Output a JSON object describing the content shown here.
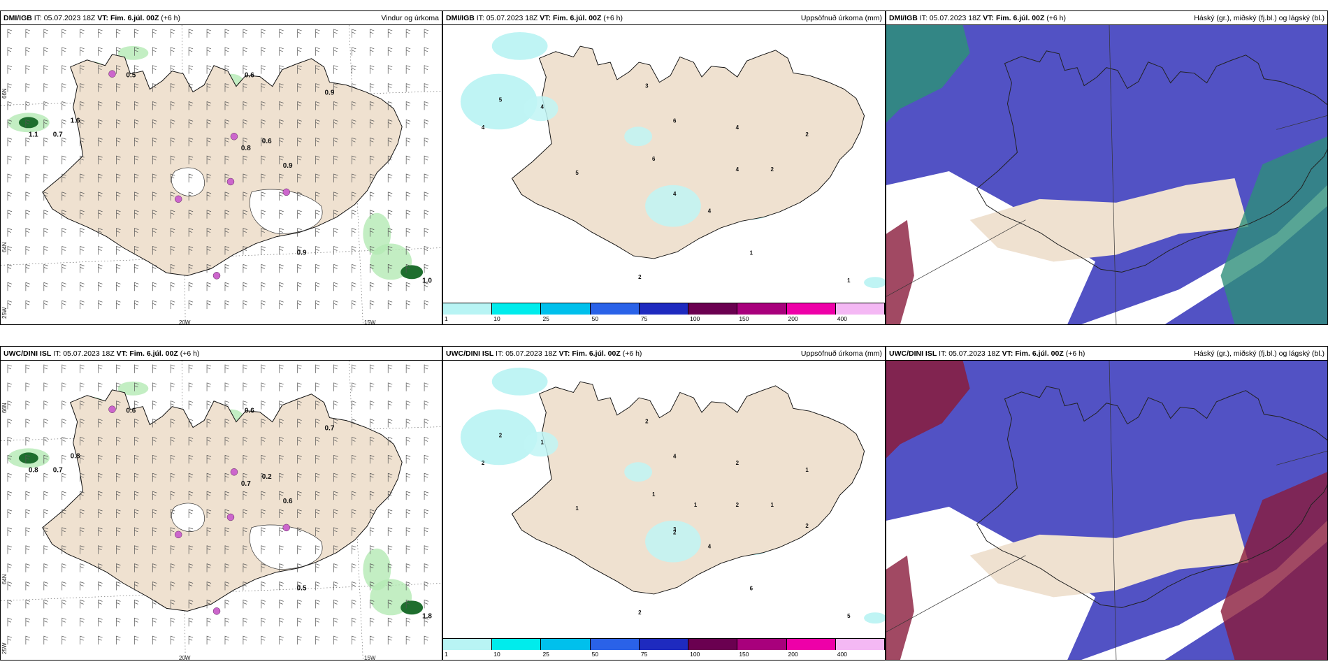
{
  "rows": [
    {
      "model": "DMI/IGB",
      "panels": [
        {
          "title": "Vindur og úrkoma",
          "kind": "wind"
        },
        {
          "title": "Uppsöfnuð úrkoma (mm)",
          "kind": "accum"
        },
        {
          "title": "Háský (gr.), miðský (fj.bl.) og lágský (bl.)",
          "kind": "cloud"
        }
      ],
      "wind_labels": [
        "0.5",
        "0.6",
        "0.9",
        "1.1",
        "0.7",
        "1.6",
        "0.8",
        "0.6",
        "0.9",
        "0.9",
        "1.0"
      ],
      "accum_labels": [
        "4",
        "5",
        "4",
        "3",
        "6",
        "4",
        "2",
        "6",
        "4",
        "2",
        "5",
        "4",
        "4",
        "1",
        "1",
        "2"
      ]
    },
    {
      "model": "UWC/DINI ISL",
      "panels": [
        {
          "title": "Vindur og úrkoma",
          "kind": "wind"
        },
        {
          "title": "Uppsöfnuð úrkoma (mm)",
          "kind": "accum"
        },
        {
          "title": "Háský (gr.), miðský (fj.bl.) og lágský (bl.)",
          "kind": "cloud"
        }
      ],
      "wind_labels": [
        "0.6",
        "0.6",
        "0.7",
        "0.8",
        "0.7",
        "0.8",
        "0.7",
        "0.2",
        "0.6",
        "0.5",
        "1.8"
      ],
      "accum_labels": [
        "2",
        "2",
        "1",
        "2",
        "4",
        "2",
        "1",
        "1",
        "2",
        "1",
        "1",
        "3",
        "4",
        "5",
        "6",
        "2",
        "2",
        "1",
        "2"
      ]
    }
  ],
  "header": {
    "it_label": "IT:",
    "it_value": "05.07.2023 18Z",
    "vt_label": "VT:",
    "vt_value": "Fim. 6.júl. 00Z",
    "lead": "(+6 h)"
  },
  "axis": {
    "lon_labels": [
      "20W",
      "15W"
    ],
    "lat_labels": [
      "66N",
      "64N"
    ],
    "corner_lat": "25W"
  },
  "colorbar": {
    "ticks": [
      "1",
      "10",
      "25",
      "50",
      "75",
      "100",
      "150",
      "200",
      "400"
    ],
    "colors": [
      "#b8f4f4",
      "#00ecec",
      "#00c0ec",
      "#2a62e8",
      "#1e2abf",
      "#6a0050",
      "#a8007c",
      "#ee00a8",
      "#f4b8f4"
    ]
  },
  "colors": {
    "land": "#efe1d0",
    "precip_light": "#b4eab4",
    "precip_mid": "#5fc05f",
    "precip_dark": "#1e6e2e",
    "convective": "#cc66cc",
    "accum_fill": "#bff4f4",
    "cloud_low": "#5252c4",
    "cloud_high": "#2e8f7a",
    "cloud_mid": "#8a1c3c"
  }
}
